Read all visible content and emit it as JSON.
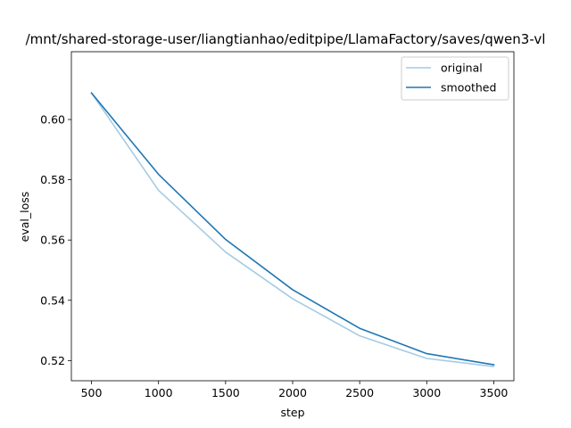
{
  "chart_data": {
    "type": "line",
    "title": "/mnt/shared-storage-user/liangtianhao/editpipe/LlamaFactory/saves/qwen3-vl",
    "xlabel": "step",
    "ylabel": "eval_loss",
    "xlim": [
      350,
      3650
    ],
    "ylim": [
      0.5133,
      0.6225
    ],
    "xticks": [
      500,
      1000,
      1500,
      2000,
      2500,
      3000,
      3500
    ],
    "yticks": [
      0.52,
      0.54,
      0.56,
      0.58,
      0.6
    ],
    "grid": false,
    "legend_position": "top-right",
    "x": [
      500,
      1000,
      1500,
      2000,
      2500,
      3000,
      3500
    ],
    "series": [
      {
        "name": "original",
        "color": "#a6cbe3",
        "values": [
          0.6088,
          0.5765,
          0.556,
          0.5405,
          0.5282,
          0.5207,
          0.518
        ]
      },
      {
        "name": "smoothed",
        "color": "#1f77b4",
        "values": [
          0.6088,
          0.5818,
          0.5602,
          0.5435,
          0.5307,
          0.5223,
          0.5186
        ]
      }
    ]
  }
}
